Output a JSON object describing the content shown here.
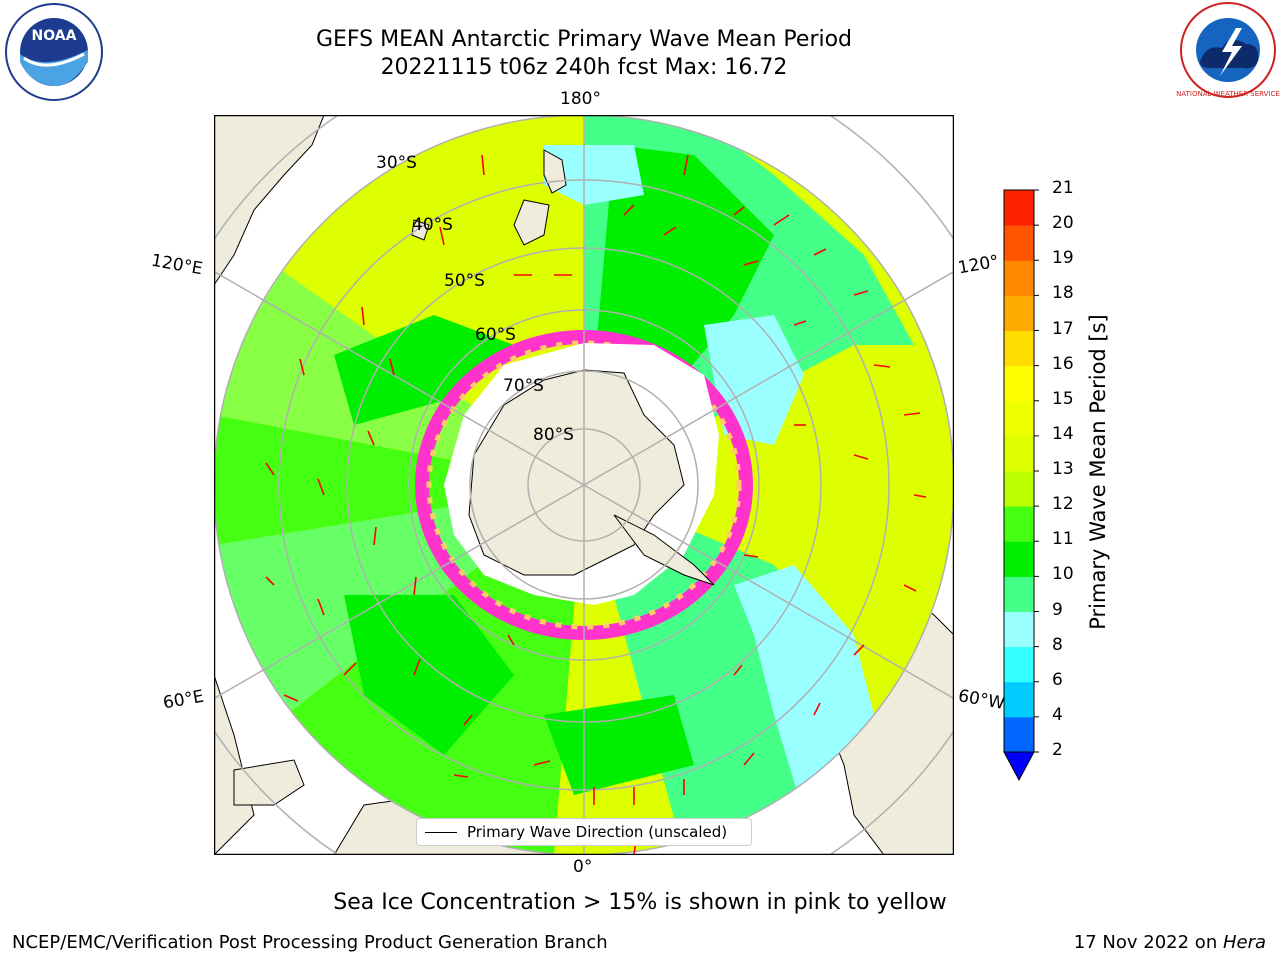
{
  "title": {
    "line1": "GEFS MEAN Antarctic Primary Wave Mean Period",
    "line2": "20221115 t06z 240h fcst   Max: 16.72"
  },
  "logos": {
    "left": "noaa-logo",
    "left_text": "NOAA",
    "right": "nws-logo",
    "right_text": "NATIONAL WEATHER SERVICE"
  },
  "map": {
    "projection": "south-polar-stereographic",
    "longitude_labels": {
      "top": "180°",
      "bottom": "0°",
      "left_upper": "120°E",
      "left_lower": "60°E",
      "right_upper": "120°",
      "right_lower": "60°W"
    },
    "latitude_labels": [
      "30°S",
      "40°S",
      "50°S",
      "60°S",
      "70°S",
      "80°S"
    ],
    "land_color": "#efecdc",
    "ice_colors": [
      "#ff33cc",
      "#ff99cc",
      "#ffcc66"
    ]
  },
  "colorbar": {
    "label": "Primary Wave Mean Period [s]",
    "ticks": [
      "2",
      "4",
      "6",
      "8",
      "9",
      "10",
      "11",
      "12",
      "13",
      "14",
      "15",
      "16",
      "17",
      "18",
      "19",
      "20",
      "21"
    ],
    "colors": [
      "#0066ff",
      "#00ccff",
      "#33ffff",
      "#99ffff",
      "#44ff88",
      "#00ee00",
      "#44ff11",
      "#bbff00",
      "#ddff00",
      "#eeff00",
      "#ffff00",
      "#ffdd00",
      "#ffaa00",
      "#ff8800",
      "#ff5500",
      "#ff2200"
    ],
    "under_color": "#0000ff"
  },
  "legend": {
    "label": "Primary Wave Direction (unscaled)",
    "arrow_color": "#ff0000"
  },
  "notes": {
    "sea_ice": "Sea Ice Concentration > 15% is shown in pink to yellow"
  },
  "footer": {
    "left": "NCEP/EMC/Verification Post Processing Product Generation Branch",
    "date": "17 Nov 2022 on ",
    "host": "Hera"
  }
}
